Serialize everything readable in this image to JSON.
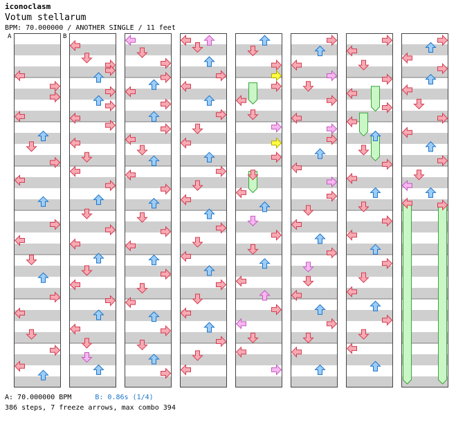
{
  "header": {
    "artist": "iconoclasm",
    "title": "Votum stellarum",
    "meta": "BPM: 70.000000 / ANOTHER SINGLE / 11 feet"
  },
  "markers": {
    "a": "A",
    "b": "B"
  },
  "legend": {
    "a_text": "A: 70.000000 BPM",
    "b_text": "B: 0.86s (1/4)"
  },
  "stats": "386 steps, 7 freeze arrows, max combo 394",
  "colors": {
    "left": "#f7aab4",
    "down": "#f7aab4",
    "up": "#9dcdf7",
    "right": "#f7aab4",
    "left_stroke": "#d23c50",
    "blue_stroke": "#1c73c8",
    "pink": "#f7b7f0",
    "pink_stroke": "#c35ac1",
    "yellow": "#ffff42",
    "freeze": "#c9f7c6",
    "freeze_stroke": "#3da33d",
    "stripe": "#cfcfcf",
    "measure_line": "#7d7d7d",
    "column_border": "#444444"
  },
  "columns": [
    {
      "notes": [
        [
          "L",
          0.24
        ],
        [
          "R",
          0.3
        ],
        [
          "R",
          0.36
        ],
        [
          "L",
          0.47
        ],
        [
          "U",
          0.58
        ],
        [
          "D",
          0.64
        ],
        [
          "R",
          0.73
        ],
        [
          "L",
          0.83
        ],
        [
          "U",
          0.95
        ],
        [
          "R",
          1.08
        ],
        [
          "L",
          1.17
        ],
        [
          "D",
          1.28
        ],
        [
          "U",
          1.38
        ],
        [
          "R",
          1.49
        ],
        [
          "L",
          1.58
        ],
        [
          "D",
          1.7
        ],
        [
          "R",
          1.79
        ],
        [
          "L",
          1.88
        ],
        [
          "U",
          1.93
        ]
      ]
    },
    {
      "notes": [
        [
          "L",
          0.07
        ],
        [
          "D",
          0.14
        ],
        [
          "R",
          0.18
        ],
        [
          "R",
          0.21
        ],
        [
          "U",
          0.25
        ],
        [
          "R",
          0.33
        ],
        [
          "U",
          0.38
        ],
        [
          "R",
          0.41
        ],
        [
          "L",
          0.48
        ],
        [
          "R",
          0.52
        ],
        [
          "L",
          0.62
        ],
        [
          "D",
          0.7
        ],
        [
          "L",
          0.78
        ],
        [
          "R",
          0.86
        ],
        [
          "U",
          0.94
        ],
        [
          "D",
          1.02
        ],
        [
          "R",
          1.11
        ],
        [
          "L",
          1.19
        ],
        [
          "U",
          1.27
        ],
        [
          "D",
          1.34
        ],
        [
          "L",
          1.42
        ],
        [
          "R",
          1.51
        ],
        [
          "U",
          1.59
        ],
        [
          "L",
          1.67
        ],
        [
          "D",
          1.75
        ],
        [
          "P",
          1.83
        ],
        [
          "U",
          1.9
        ]
      ]
    },
    {
      "notes": [
        [
          "P",
          0.04
        ],
        [
          "D",
          0.11
        ],
        [
          "R",
          0.17
        ],
        [
          "R",
          0.25
        ],
        [
          "U",
          0.29
        ],
        [
          "L",
          0.33
        ],
        [
          "R",
          0.4
        ],
        [
          "U",
          0.47
        ],
        [
          "R",
          0.54
        ],
        [
          "L",
          0.6
        ],
        [
          "D",
          0.66
        ],
        [
          "U",
          0.72
        ],
        [
          "L",
          0.8
        ],
        [
          "R",
          0.88
        ],
        [
          "U",
          0.96
        ],
        [
          "D",
          1.04
        ],
        [
          "R",
          1.12
        ],
        [
          "L",
          1.2
        ],
        [
          "U",
          1.28
        ],
        [
          "R",
          1.36
        ],
        [
          "D",
          1.44
        ],
        [
          "L",
          1.52
        ],
        [
          "U",
          1.6
        ],
        [
          "R",
          1.68
        ],
        [
          "D",
          1.76
        ],
        [
          "U",
          1.84
        ],
        [
          "R",
          1.92
        ]
      ]
    },
    {
      "notes": [
        [
          "L",
          0.04
        ],
        [
          "D",
          0.08
        ],
        [
          "P",
          0.04
        ],
        [
          "U",
          0.16
        ],
        [
          "R",
          0.24
        ],
        [
          "L",
          0.3
        ],
        [
          "U",
          0.38
        ],
        [
          "R",
          0.46
        ],
        [
          "D",
          0.54
        ],
        [
          "L",
          0.62
        ],
        [
          "U",
          0.7
        ],
        [
          "R",
          0.78
        ],
        [
          "D",
          0.86
        ],
        [
          "L",
          0.94
        ],
        [
          "U",
          1.02
        ],
        [
          "R",
          1.1
        ],
        [
          "D",
          1.18
        ],
        [
          "L",
          1.26
        ],
        [
          "U",
          1.34
        ],
        [
          "R",
          1.42
        ],
        [
          "D",
          1.5
        ],
        [
          "L",
          1.58
        ],
        [
          "U",
          1.66
        ],
        [
          "R",
          1.74
        ],
        [
          "D",
          1.82
        ],
        [
          "L",
          1.9
        ]
      ]
    },
    {
      "notes": [
        [
          "U",
          0.04
        ],
        [
          "D",
          0.1
        ],
        [
          "R",
          0.18
        ],
        [
          "Y",
          0.24
        ],
        [
          "R",
          0.3
        ],
        [
          "L",
          0.38
        ],
        [
          "D",
          0.46
        ],
        [
          "P",
          0.53
        ],
        [
          "Y",
          0.62
        ],
        [
          "R",
          0.7
        ],
        [
          "D",
          0.8
        ],
        [
          "L",
          0.9
        ],
        [
          "U",
          0.98
        ],
        [
          "P",
          1.06
        ],
        [
          "R",
          1.14
        ],
        [
          "D",
          1.22
        ],
        [
          "U",
          1.3
        ],
        [
          "L",
          1.4
        ],
        [
          "P",
          1.48
        ],
        [
          "R",
          1.56
        ],
        [
          "P",
          1.64
        ],
        [
          "D",
          1.72
        ],
        [
          "L",
          1.8
        ],
        [
          "P",
          1.9
        ]
      ],
      "freezes": [
        [
          1,
          0.28,
          0.4
        ],
        [
          1,
          0.78,
          0.9
        ]
      ]
    },
    {
      "notes": [
        [
          "R",
          0.04
        ],
        [
          "U",
          0.1
        ],
        [
          "L",
          0.18
        ],
        [
          "P",
          0.24
        ],
        [
          "D",
          0.3
        ],
        [
          "R",
          0.38
        ],
        [
          "L",
          0.48
        ],
        [
          "P",
          0.54
        ],
        [
          "R",
          0.6
        ],
        [
          "U",
          0.68
        ],
        [
          "L",
          0.76
        ],
        [
          "P",
          0.84
        ],
        [
          "R",
          0.92
        ],
        [
          "D",
          1.0
        ],
        [
          "L",
          1.08
        ],
        [
          "U",
          1.16
        ],
        [
          "R",
          1.24
        ],
        [
          "P",
          1.32
        ],
        [
          "D",
          1.4
        ],
        [
          "L",
          1.48
        ],
        [
          "U",
          1.56
        ],
        [
          "R",
          1.64
        ],
        [
          "D",
          1.72
        ],
        [
          "L",
          1.8
        ],
        [
          "U",
          1.9
        ]
      ]
    },
    {
      "notes": [
        [
          "R",
          0.04
        ],
        [
          "L",
          0.1
        ],
        [
          "D",
          0.18
        ],
        [
          "R",
          0.26
        ],
        [
          "L",
          0.34
        ],
        [
          "R",
          0.42
        ],
        [
          "L",
          0.5
        ],
        [
          "U",
          0.58
        ],
        [
          "D",
          0.66
        ],
        [
          "R",
          0.74
        ],
        [
          "L",
          0.82
        ],
        [
          "U",
          0.9
        ],
        [
          "D",
          0.98
        ],
        [
          "R",
          1.06
        ],
        [
          "L",
          1.14
        ],
        [
          "U",
          1.22
        ],
        [
          "R",
          1.3
        ],
        [
          "D",
          1.38
        ],
        [
          "L",
          1.46
        ],
        [
          "U",
          1.54
        ],
        [
          "R",
          1.62
        ],
        [
          "D",
          1.7
        ],
        [
          "L",
          1.78
        ],
        [
          "U",
          1.88
        ]
      ],
      "freezes": [
        [
          2,
          0.3,
          0.44
        ],
        [
          1,
          0.45,
          0.58
        ],
        [
          2,
          0.58,
          0.72
        ]
      ]
    },
    {
      "notes": [
        [
          "R",
          0.04
        ],
        [
          "U",
          0.08
        ],
        [
          "L",
          0.14
        ],
        [
          "R",
          0.2
        ],
        [
          "U",
          0.26
        ],
        [
          "L",
          0.32
        ],
        [
          "D",
          0.4
        ],
        [
          "R",
          0.48
        ],
        [
          "L",
          0.56
        ],
        [
          "U",
          0.64
        ],
        [
          "R",
          0.72
        ],
        [
          "D",
          0.8
        ],
        [
          "P",
          0.86
        ],
        [
          "U",
          0.9
        ],
        [
          "L",
          0.96
        ],
        [
          "R",
          0.97
        ]
      ],
      "freezes": [
        [
          0,
          0.97,
          1.98
        ],
        [
          3,
          0.97,
          1.98
        ]
      ]
    }
  ]
}
